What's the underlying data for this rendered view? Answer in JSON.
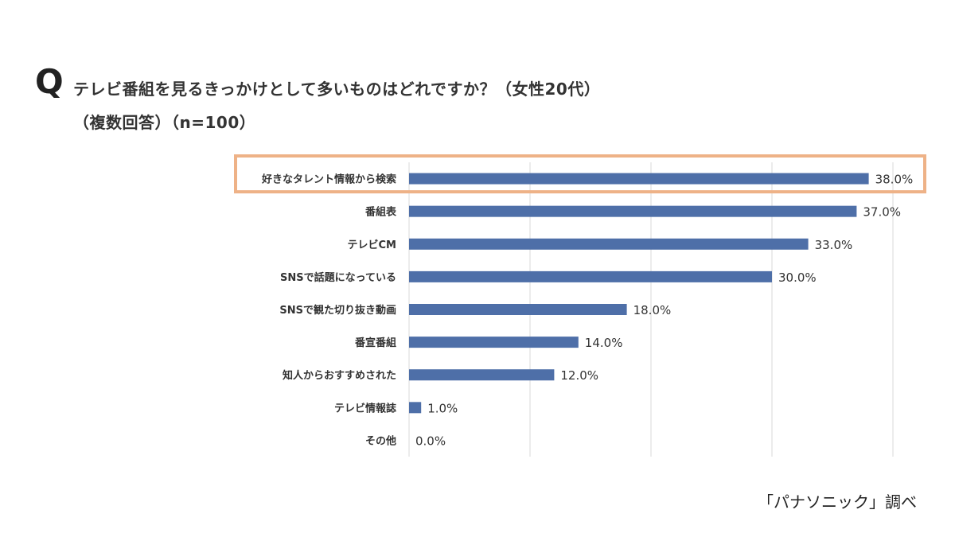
{
  "header": {
    "q_mark": "Q",
    "question_line1": "テレビ番組を見るきっかけとして多いものはどれですか？（女性20代）",
    "question_line2": "（複数回答）（n=100）"
  },
  "footer": {
    "source": "「パナソニック」調べ"
  },
  "colors": {
    "bar": "#4e6fa8",
    "highlight_border": "#eeb287",
    "grid": "#d9d9d9"
  },
  "chart_data": {
    "type": "bar",
    "orientation": "horizontal",
    "title": "テレビ番組を見るきっかけとして多いものはどれですか？（女性20代）（複数回答）（n=100）",
    "categories": [
      "好きなタレント情報から検索",
      "番組表",
      "テレビCM",
      "SNSで話題になっている",
      "SNSで観た切り抜き動画",
      "番宣番組",
      "知人からおすすめされた",
      "テレビ情報誌",
      "その他"
    ],
    "values": [
      38.0,
      37.0,
      33.0,
      30.0,
      18.0,
      14.0,
      12.0,
      1.0,
      0.0
    ],
    "value_labels": [
      "38.0%",
      "37.0%",
      "33.0%",
      "30.0%",
      "18.0%",
      "14.0%",
      "12.0%",
      "1.0%",
      "0.0%"
    ],
    "unit": "%",
    "xlim": [
      0,
      40
    ],
    "grid_values": [
      0,
      10,
      20,
      30,
      40
    ],
    "grid": true,
    "highlighted_category": "好きなタレント情報から検索"
  }
}
